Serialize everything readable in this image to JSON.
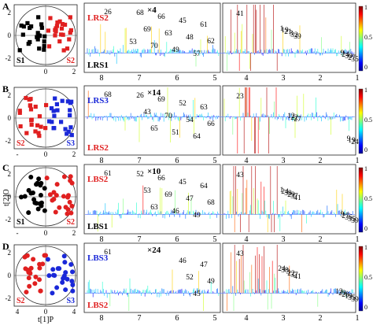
{
  "colors": {
    "red": "#e02020",
    "black": "#000000",
    "blue": "#1a28d8",
    "axis": "#222222"
  },
  "colorbar": {
    "ticks": [
      "1",
      "0.5",
      "0"
    ],
    "colormap": "jet"
  },
  "panels": [
    {
      "letter": "A",
      "score": {
        "yticks": [
          "2",
          "0",
          "-2"
        ],
        "xticks": [
          "0",
          "2"
        ],
        "groups": [
          {
            "label": "S1",
            "color": "#000000",
            "marker": "square"
          },
          {
            "label": "S2",
            "color": "#e02020",
            "marker": "square"
          }
        ]
      },
      "spectrum": {
        "top_label": "LRS2",
        "top_color": "#e02020",
        "bottom_label": "LRS1",
        "bottom_color": "#000000",
        "zoom": "×4",
        "left_axis": [
          "8",
          "7",
          "6",
          "5"
        ],
        "right_axis": [
          "4",
          "3",
          "2",
          "1"
        ],
        "peaks_left": [
          "26",
          "62",
          "61",
          "57",
          "48",
          "45",
          "49",
          "63",
          "66",
          "70",
          "69",
          "68",
          "53"
        ],
        "peaks_right": [
          "41",
          "39",
          "35",
          "32",
          "27",
          "3",
          "30",
          "21",
          "24",
          "19",
          "9",
          "1"
        ]
      }
    },
    {
      "letter": "B",
      "score": {
        "yticks": [
          "2",
          "0",
          "-2"
        ],
        "xticks": [
          "-",
          "0",
          "2"
        ],
        "groups": [
          {
            "label": "S2",
            "color": "#e02020",
            "marker": "square"
          },
          {
            "label": "S3",
            "color": "#1a28d8",
            "marker": "square"
          }
        ]
      },
      "spectrum": {
        "top_label": "LRS3",
        "top_color": "#1a28d8",
        "bottom_label": "LRS2",
        "bottom_color": "#e02020",
        "zoom": "×14",
        "left_axis": [
          "8",
          "7",
          "6",
          "5"
        ],
        "right_axis": [
          "4",
          "3",
          "2",
          "1"
        ],
        "peaks_left": [
          "68",
          "66",
          "63",
          "64",
          "54",
          "52",
          "51",
          "70",
          "69",
          "65",
          "43",
          "26"
        ],
        "peaks_right": [
          "23",
          "27",
          "24",
          "22",
          "19",
          "12",
          "9"
        ]
      }
    },
    {
      "letter": "C",
      "score": {
        "yticks": [
          "2",
          "0",
          "-2"
        ],
        "xticks": [
          "-",
          "0",
          "2"
        ],
        "ylabel": "t[2]O",
        "groups": [
          {
            "label": "S1",
            "color": "#000000",
            "marker": "circle"
          },
          {
            "label": "S2",
            "color": "#e02020",
            "marker": "circle"
          }
        ]
      },
      "spectrum": {
        "top_label": "LBS2",
        "top_color": "#e02020",
        "bottom_label": "LBS1",
        "bottom_color": "#000000",
        "zoom": "×10",
        "left_axis": [
          "8",
          "7",
          "6",
          "5"
        ],
        "right_axis": [
          "4",
          "3",
          "2",
          "1"
        ],
        "peaks_left": [
          "61",
          "68",
          "64",
          "49",
          "47",
          "45",
          "46",
          "69",
          "66",
          "63",
          "53",
          "52"
        ],
        "peaks_right": [
          "43",
          "41",
          "39",
          "37",
          "35",
          "29",
          "36",
          "38",
          "27",
          "24",
          "9",
          "1"
        ]
      }
    },
    {
      "letter": "D",
      "score": {
        "yticks": [
          "2",
          "0",
          "-2"
        ],
        "xticks": [
          "4",
          "0",
          "4"
        ],
        "xlabel": "t[1]P",
        "groups": [
          {
            "label": "S2",
            "color": "#e02020",
            "marker": "circle"
          },
          {
            "label": "S3",
            "color": "#1a28d8",
            "marker": "circle"
          }
        ]
      },
      "spectrum": {
        "top_label": "LBS3",
        "top_color": "#1a28d8",
        "bottom_label": "LBS2",
        "bottom_color": "#e02020",
        "zoom": "×24",
        "left_axis": [
          "8",
          "7",
          "6",
          "5"
        ],
        "right_axis": [
          "4",
          "3",
          "2",
          "1"
        ],
        "peaks_left": [
          "61",
          "49",
          "47",
          "45",
          "52",
          "46"
        ],
        "peaks_right": [
          "43",
          "41",
          "39",
          "37",
          "35",
          "22",
          "19",
          "3",
          "28",
          "38",
          "29",
          "24",
          "12"
        ]
      }
    }
  ]
}
